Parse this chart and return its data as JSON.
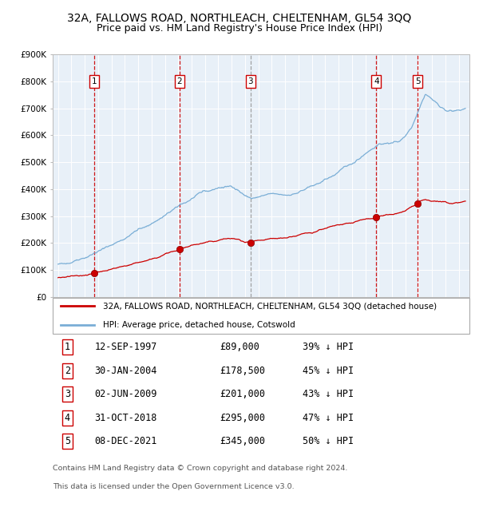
{
  "title": "32A, FALLOWS ROAD, NORTHLEACH, CHELTENHAM, GL54 3QQ",
  "subtitle": "Price paid vs. HM Land Registry's House Price Index (HPI)",
  "ylim": [
    0,
    900000
  ],
  "yticks": [
    0,
    100000,
    200000,
    300000,
    400000,
    500000,
    600000,
    700000,
    800000,
    900000
  ],
  "ytick_labels": [
    "£0",
    "£100K",
    "£200K",
    "£300K",
    "£400K",
    "£500K",
    "£600K",
    "£700K",
    "£800K",
    "£900K"
  ],
  "purchases": [
    {
      "num": 1,
      "date": "12-SEP-1997",
      "year": 1997.71,
      "price": 89000,
      "pct": "39% ↓ HPI"
    },
    {
      "num": 2,
      "date": "30-JAN-2004",
      "year": 2004.08,
      "price": 178500,
      "pct": "45% ↓ HPI"
    },
    {
      "num": 3,
      "date": "02-JUN-2009",
      "year": 2009.42,
      "price": 201000,
      "pct": "43% ↓ HPI"
    },
    {
      "num": 4,
      "date": "31-OCT-2018",
      "year": 2018.83,
      "price": 295000,
      "pct": "47% ↓ HPI"
    },
    {
      "num": 5,
      "date": "08-DEC-2021",
      "year": 2021.93,
      "price": 345000,
      "pct": "50% ↓ HPI"
    }
  ],
  "price_labels": [
    "£89,000",
    "£178,500",
    "£201,000",
    "£295,000",
    "£345,000"
  ],
  "red_line_color": "#cc0000",
  "blue_line_color": "#7aaed6",
  "plot_bg": "#e8f0f8",
  "grid_color": "#ffffff",
  "legend_label_red": "32A, FALLOWS ROAD, NORTHLEACH, CHELTENHAM, GL54 3QQ (detached house)",
  "legend_label_blue": "HPI: Average price, detached house, Cotswold",
  "footer_line1": "Contains HM Land Registry data © Crown copyright and database right 2024.",
  "footer_line2": "This data is licensed under the Open Government Licence v3.0.",
  "title_fontsize": 10,
  "subtitle_fontsize": 9,
  "xlim_left": 1994.6,
  "xlim_right": 2025.8
}
